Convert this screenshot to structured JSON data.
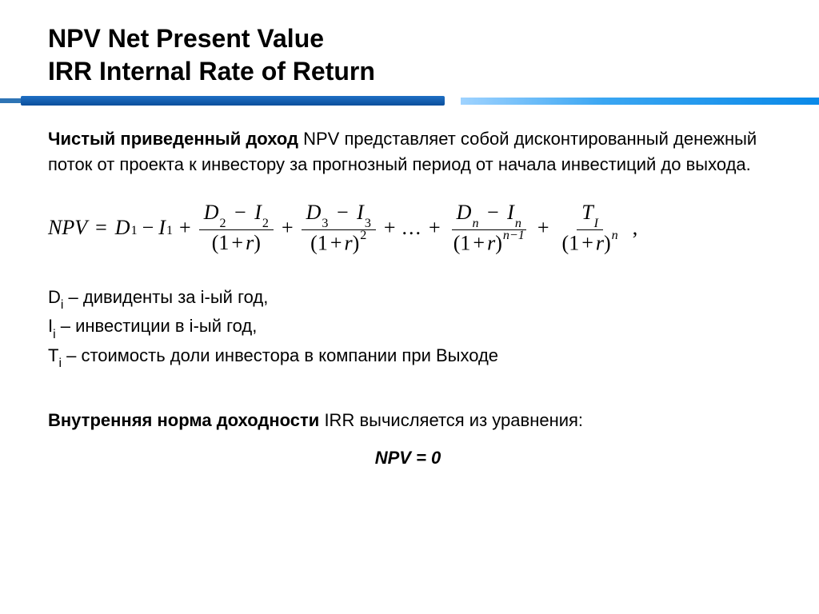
{
  "title": {
    "line1": "NPV Net Present Value",
    "line2": "IRR Internal Rate of Return"
  },
  "divider": {
    "left_color": "#1f6fc4",
    "right_gradient_from": "#9fd3ff",
    "right_gradient_to": "#0a89e8"
  },
  "intro": {
    "bold_lead": "Чистый приведенный доход",
    "rest": " NPV представляет собой дисконтированный денежный поток от проекта к инвестору за прогнозный период от начала инвестиций до выхода."
  },
  "formula": {
    "lhs": "NPV",
    "first_term_D": "D",
    "first_term_D_sub": "1",
    "first_term_I": "I",
    "first_term_I_sub": "1",
    "t2_num_D": "D",
    "t2_num_D_sub": "2",
    "t2_num_I": "I",
    "t2_num_I_sub": "2",
    "t2_den_base": "(1",
    "t2_den_r": "r",
    "t2_den_close": ")",
    "t3_num_D": "D",
    "t3_num_D_sub": "3",
    "t3_num_I": "I",
    "t3_num_I_sub": "3",
    "t3_exp": "2",
    "tn_num_D": "D",
    "tn_num_D_sub": "n",
    "tn_num_I": "I",
    "tn_num_I_sub": "n",
    "tn_exp": "n−1",
    "tT_num_T": "T",
    "tT_num_T_sub": "I",
    "tT_exp": "n",
    "plus": "+",
    "minus": "−",
    "eq": "=",
    "dots": "...",
    "one_plus": "1",
    "r": "r",
    "trailing_comma": ","
  },
  "definitions": {
    "d_label": "D",
    "d_sub": "i",
    "d_text": " – дивиденты за i-ый год,",
    "i_label": "I",
    "i_sub": "i",
    "i_text": " – инвестиции в i-ый год,",
    "t_label": "T",
    "t_sub": "i",
    "t_text": " – стоимость доли инвестора в компании при Выходе"
  },
  "irr": {
    "bold_lead": "Внутренняя норма доходности",
    "rest": " IRR вычисляется из уравнения:",
    "equation": "NPV = 0"
  },
  "colors": {
    "text": "#000000",
    "background": "#ffffff"
  }
}
